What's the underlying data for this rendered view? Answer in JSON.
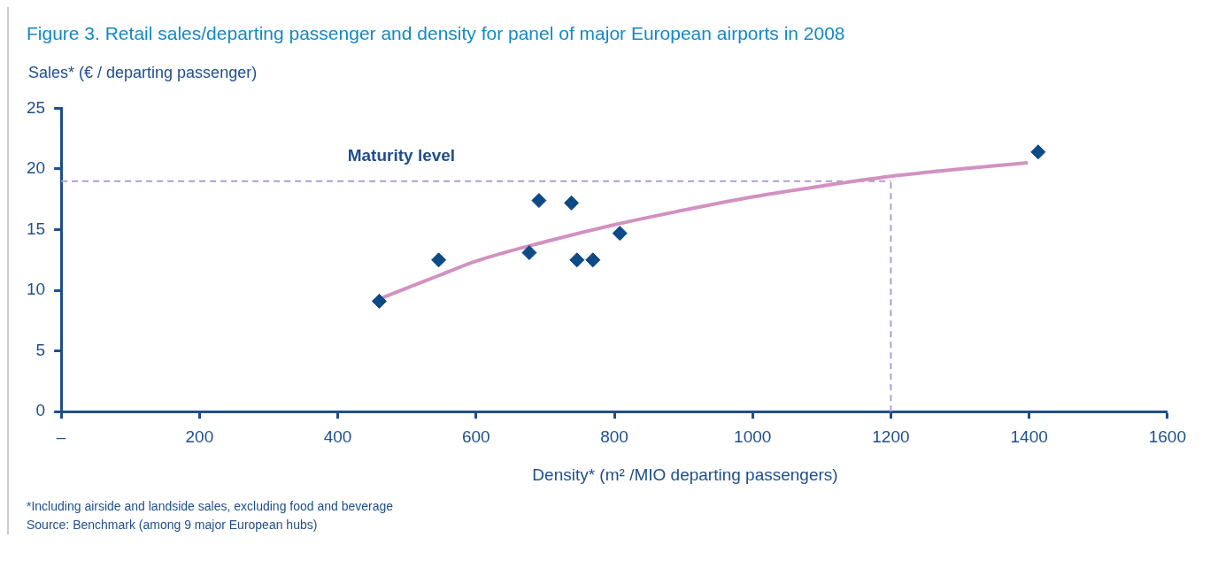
{
  "chart_data": {
    "type": "scatter",
    "title": "Figure 3. Retail sales/departing passenger and density for panel of major European airports in 2008",
    "ylabel": "Sales* (€ / departing passenger)",
    "xlabel": "Density* (m² /MIO departing passengers)",
    "xlim": [
      0,
      1600
    ],
    "xticks": [
      {
        "value": 0,
        "label": "–"
      },
      200,
      400,
      600,
      800,
      1000,
      1200,
      1400,
      1600
    ],
    "ylim": [
      0,
      25
    ],
    "yticks": [
      0,
      5,
      10,
      15,
      20,
      25
    ],
    "series": [
      {
        "type": "scatter",
        "color": "#0d4a86",
        "marker": "diamond",
        "x": [
          460,
          546,
          677,
          691,
          738,
          746,
          769,
          808,
          1413
        ],
        "values": [
          9.1,
          12.5,
          13.1,
          17.4,
          17.2,
          12.5,
          12.5,
          14.7,
          21.4
        ]
      },
      {
        "type": "line",
        "color": "#d291c0",
        "marker": "none",
        "line_style": "solid",
        "x": [
          465,
          550,
          600,
          700,
          800,
          900,
          1000,
          1100,
          1200,
          1300,
          1398
        ],
        "values": [
          9.4,
          11.3,
          12.4,
          14.0,
          15.4,
          16.6,
          17.7,
          18.6,
          19.4,
          20.0,
          20.5
        ]
      }
    ],
    "ref_lines": [
      {
        "axis": "y",
        "value": 19,
        "label": "Maturity level",
        "color": "#b19cd0",
        "line_style": "dashed"
      },
      {
        "axis": "x",
        "value": 1200,
        "color": "#b19cd0",
        "line_style": "dashed"
      }
    ],
    "annotations": [
      "*Including airside and landside sales, excluding food and beverage",
      "Source: Benchmark (among 9 major European hubs)"
    ]
  }
}
